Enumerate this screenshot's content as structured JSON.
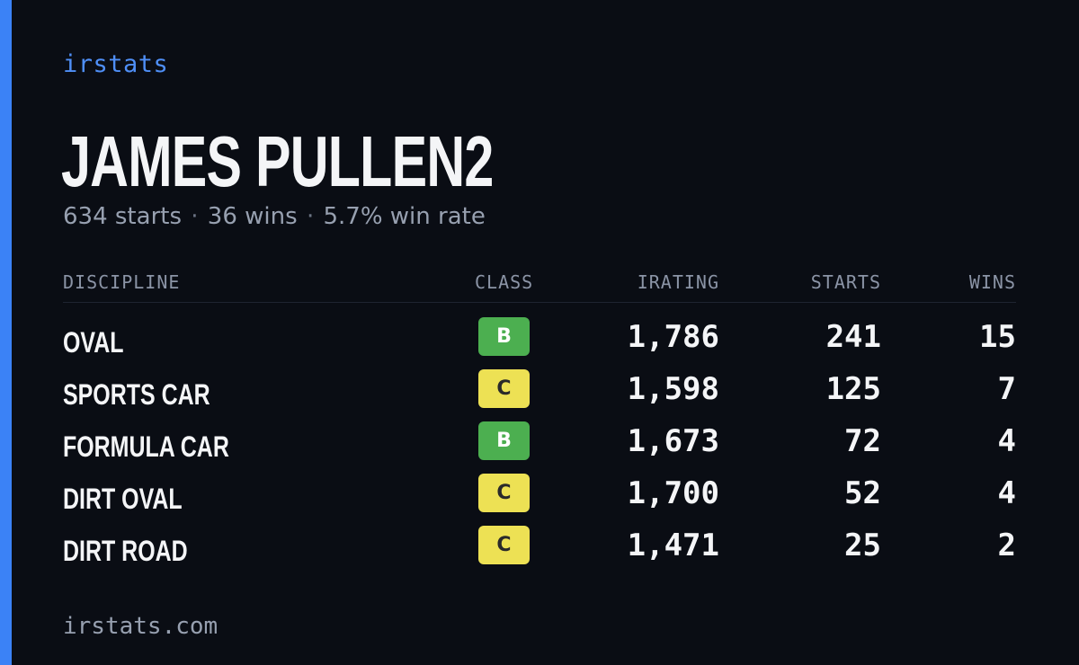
{
  "brand": "irstats",
  "driver": {
    "name": "JAMES PULLEN2",
    "starts": "634 starts",
    "wins": "36 wins",
    "win_rate": "5.7% win rate",
    "separator": "·"
  },
  "table": {
    "headers": {
      "discipline": "DISCIPLINE",
      "class": "CLASS",
      "irating": "IRATING",
      "starts": "STARTS",
      "wins": "WINS"
    },
    "rows": [
      {
        "discipline": "OVAL",
        "class": "B",
        "class_color": "#4caf50",
        "class_text_color": "#ffffff",
        "irating": "1,786",
        "starts": "241",
        "wins": "15"
      },
      {
        "discipline": "SPORTS CAR",
        "class": "C",
        "class_color": "#ede154",
        "class_text_color": "#2a2a2a",
        "irating": "1,598",
        "starts": "125",
        "wins": "7"
      },
      {
        "discipline": "FORMULA CAR",
        "class": "B",
        "class_color": "#4caf50",
        "class_text_color": "#ffffff",
        "irating": "1,673",
        "starts": "72",
        "wins": "4"
      },
      {
        "discipline": "DIRT OVAL",
        "class": "C",
        "class_color": "#ede154",
        "class_text_color": "#2a2a2a",
        "irating": "1,700",
        "starts": "52",
        "wins": "4"
      },
      {
        "discipline": "DIRT ROAD",
        "class": "C",
        "class_color": "#ede154",
        "class_text_color": "#2a2a2a",
        "irating": "1,471",
        "starts": "25",
        "wins": "2"
      }
    ]
  },
  "footer": "irstats.com",
  "colors": {
    "accent": "#3b82f6",
    "brand": "#4f8ff7",
    "background": "#0a0d14"
  }
}
